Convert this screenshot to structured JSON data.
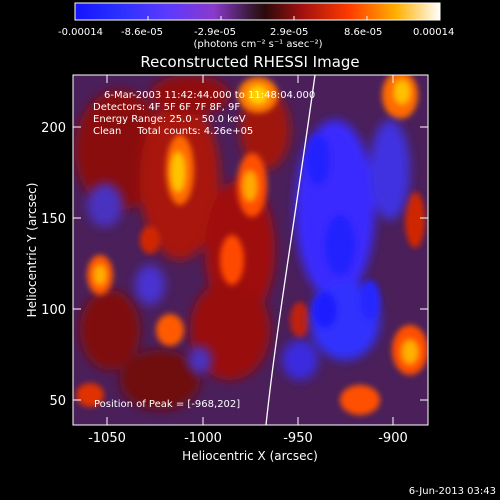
{
  "title": "Reconstructed RHESSI Image",
  "colorbar": {
    "tick_labels": [
      "-0.00014",
      "-8.6e-05",
      "-2.9e-05",
      "2.9e-05",
      "8.6e-05",
      "0.00014"
    ],
    "unit_label": "(photons cm⁻² s⁻¹ asec⁻²)"
  },
  "info": {
    "time_range": "6-Mar-2003 11:42:44.000 to 11:48:04.000",
    "detectors": "Detectors: 4F 5F 6F 7F 8F, 9F",
    "energy_range": "Energy Range: 25.0 - 50.0 keV",
    "method_counts": "Clean     Total counts: 4.26e+05",
    "peak_position": "Position of Peak = [-968,202]"
  },
  "axes": {
    "xlabel": "Heliocentric X (arcsec)",
    "ylabel": "Heliocentric Y (arcsec)",
    "x_ticks": [
      "-1050",
      "-1000",
      "-950",
      "-900"
    ],
    "y_ticks": [
      "200",
      "150",
      "100",
      "50"
    ]
  },
  "footer": {
    "timestamp": "6-Jun-2013 03:43"
  }
}
